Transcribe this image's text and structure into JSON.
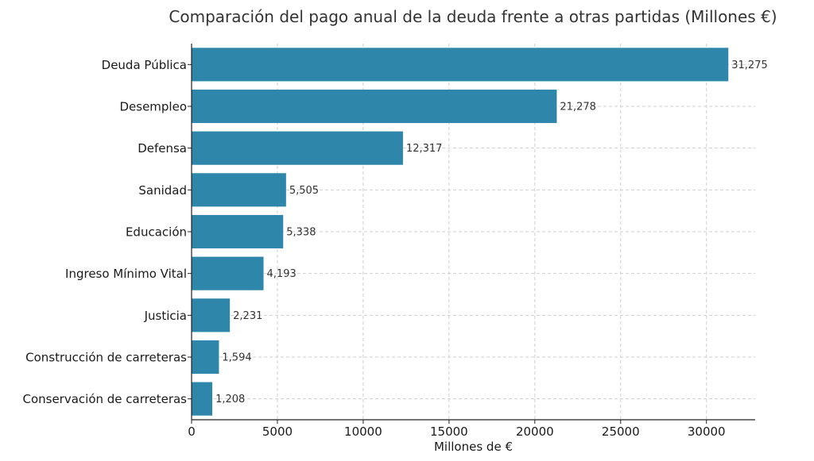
{
  "chart_data": {
    "type": "bar",
    "orientation": "horizontal",
    "title": "Comparación del pago anual de la deuda frente a otras partidas (Millones €)",
    "xlabel": "Millones de €",
    "ylabel": "",
    "categories": [
      "Deuda Pública",
      "Desempleo",
      "Defensa",
      "Sanidad",
      "Educación",
      "Ingreso Mínimo Vital",
      "Justicia",
      "Construcción de carreteras",
      "Conservación de carreteras"
    ],
    "values": [
      31275,
      21278,
      12317,
      5505,
      5338,
      4193,
      2231,
      1594,
      1208
    ],
    "value_labels": [
      "31,275",
      "21,278",
      "12,317",
      "5,505",
      "5,338",
      "4,193",
      "2,231",
      "1,594",
      "1,208"
    ],
    "xlim": [
      0,
      32838
    ],
    "xticks": [
      0,
      5000,
      10000,
      15000,
      20000,
      25000,
      30000
    ],
    "xtick_labels": [
      "0",
      "5000",
      "10000",
      "15000",
      "20000",
      "25000",
      "30000"
    ],
    "grid": true,
    "bar_color": "#2e86ab"
  }
}
